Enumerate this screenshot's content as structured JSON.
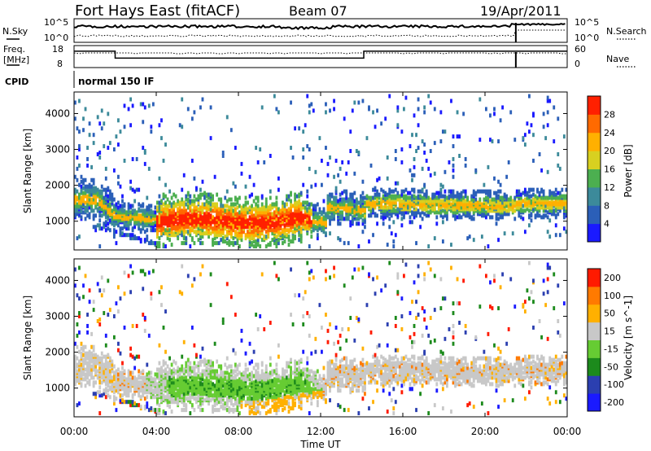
{
  "header": {
    "radar": "Fort Hays East (fitACF)",
    "beam": "Beam 07",
    "date": "19/Apr/2011"
  },
  "noise_panel": {
    "left_label": "N.Sky",
    "right_label": "N.Search",
    "left_ticks": [
      "10^5",
      "10^0"
    ],
    "right_ticks": [
      "10^5",
      "10^0"
    ]
  },
  "freq_panel": {
    "left_label_1": "Freq.",
    "left_label_2": "[MHz]",
    "right_label": "Nave",
    "left_ticks": [
      "18",
      "8"
    ],
    "right_ticks": [
      "60",
      "0"
    ],
    "freq_steps": [
      {
        "t": 0.0,
        "mhz": 16.5
      },
      {
        "t": 2.0,
        "mhz": 12.0
      },
      {
        "t": 14.1,
        "mhz": 16.5
      },
      {
        "t": 21.5,
        "mhz": 16.5
      }
    ]
  },
  "cpid": {
    "label": "CPID",
    "program": "normal 150 IF"
  },
  "time_axis": {
    "ticks": [
      "00:00",
      "04:00",
      "08:00",
      "12:00",
      "16:00",
      "20:00",
      "00:00"
    ],
    "title": "Time UT"
  },
  "chart_data": [
    {
      "type": "heatmap",
      "name": "power",
      "ylabel": "Slant Range [km]",
      "yticks": [
        "1000",
        "2000",
        "3000",
        "4000"
      ],
      "ylim": [
        200,
        4600
      ],
      "xlim_hours": [
        0,
        24
      ],
      "colorbar_label": "Power [dB]",
      "colorbar_ticks": [
        "28",
        "24",
        "20",
        "16",
        "12",
        "8",
        "4"
      ],
      "colors": [
        "#1a1aff",
        "#2b5fb8",
        "#3c8a9a",
        "#4caf50",
        "#d8d020",
        "#ffb000",
        "#ff6a00",
        "#ff2000"
      ]
    },
    {
      "type": "heatmap",
      "name": "velocity",
      "ylabel": "Slant Range [km]",
      "yticks": [
        "1000",
        "2000",
        "3000",
        "4000"
      ],
      "ylim": [
        200,
        4600
      ],
      "xlim_hours": [
        0,
        24
      ],
      "colorbar_label": "Velocity [m s^-1]",
      "colorbar_ticks": [
        "200",
        "100",
        "50",
        "15",
        "-15",
        "-50",
        "-100",
        "-200"
      ],
      "colors": [
        "#1a1aff",
        "#2b3fb0",
        "#1c8a1c",
        "#66cc33",
        "#c8c8c8",
        "#ffb000",
        "#ff7a00",
        "#ff1a00"
      ]
    }
  ]
}
